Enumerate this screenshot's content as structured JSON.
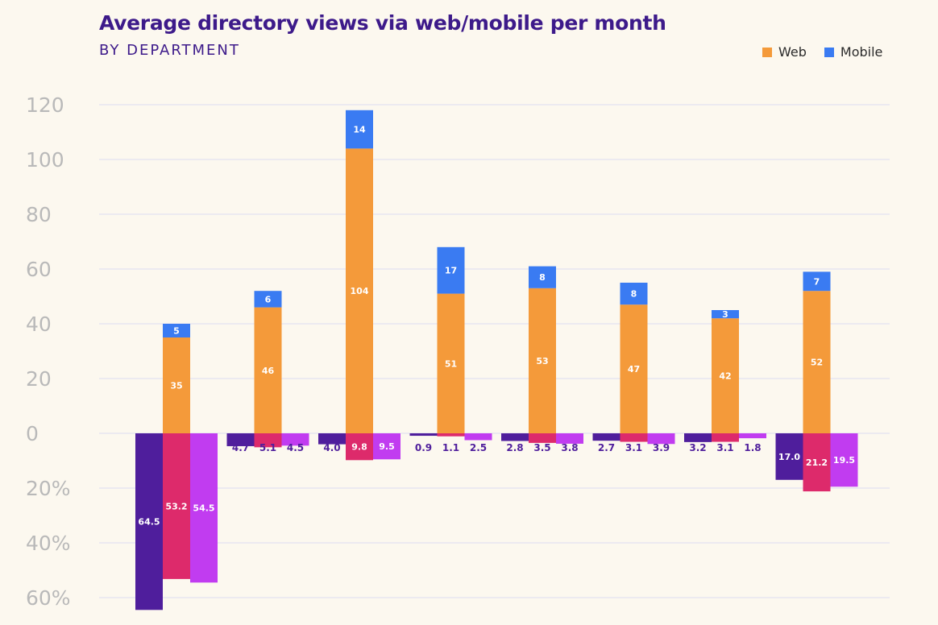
{
  "header": {
    "title": "Average directory views via web/mobile per month",
    "subtitle": "BY DEPARTMENT"
  },
  "legend": [
    {
      "label": "Web",
      "color": "#f49a3a"
    },
    {
      "label": "Mobile",
      "color": "#3a7bf2"
    }
  ],
  "colors": {
    "web": "#f49a3a",
    "mobile": "#3a7bf2",
    "neg1": "#4f1e9c",
    "neg2": "#dd2a6b",
    "neg3": "#c13cf0",
    "grid": "#dcdcf0",
    "tick": "#b9b9b9"
  },
  "chart_data": {
    "type": "bar",
    "title": "Average directory views via web/mobile per month",
    "subtitle": "BY DEPARTMENT",
    "stacked_series": [
      {
        "name": "Web",
        "values": [
          35,
          46,
          104,
          51,
          53,
          47,
          42,
          52
        ]
      },
      {
        "name": "Mobile",
        "values": [
          5,
          6,
          14,
          17,
          8,
          8,
          3,
          7
        ]
      }
    ],
    "percent_series": [
      {
        "values": [
          64.5,
          4.7,
          4.0,
          0.9,
          2.8,
          2.7,
          3.2,
          17.0
        ]
      },
      {
        "values": [
          53.2,
          5.1,
          9.8,
          1.1,
          3.5,
          3.1,
          3.1,
          21.2
        ]
      },
      {
        "values": [
          54.5,
          4.5,
          9.5,
          2.5,
          3.8,
          3.9,
          1.8,
          19.5
        ]
      }
    ],
    "yticks_positive": [
      "120",
      "100",
      "80",
      "60",
      "40",
      "20",
      "0"
    ],
    "yticks_negative": [
      "20%",
      "40%",
      "60%"
    ],
    "ylim": [
      -60,
      120
    ],
    "grid": true,
    "legend_position": "top-right"
  }
}
